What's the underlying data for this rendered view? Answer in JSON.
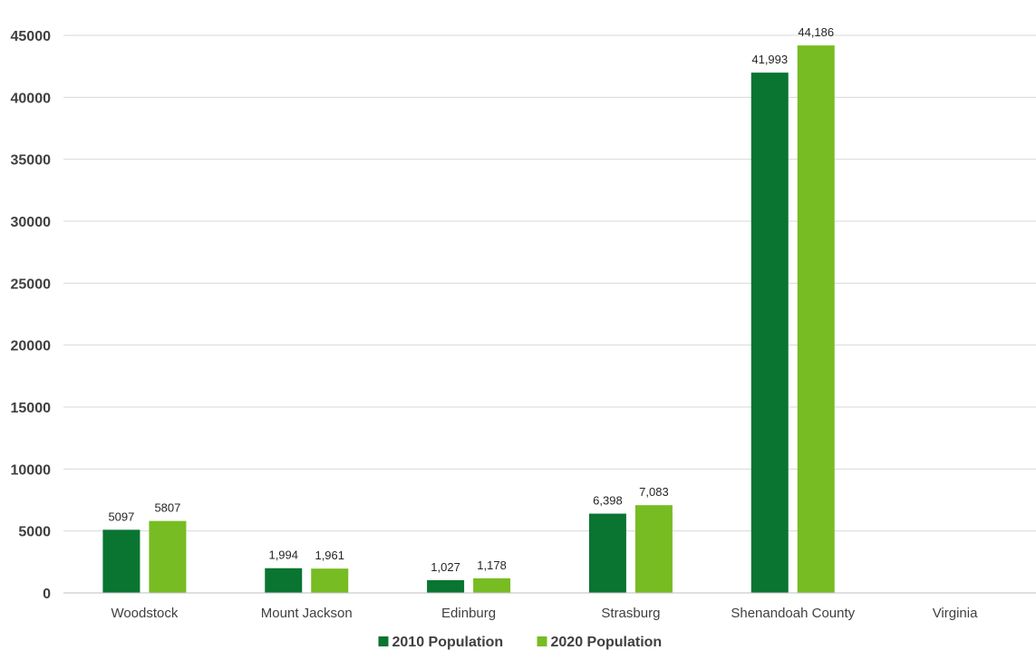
{
  "chart_data": {
    "type": "bar",
    "categories": [
      "Woodstock",
      "Mount Jackson",
      "Edinburg",
      "Strasburg",
      "Shenandoah County",
      "Virginia"
    ],
    "series": [
      {
        "name": "2010 Population",
        "color": "#0a7431",
        "values": [
          5097,
          1994,
          1027,
          6398,
          41993,
          null
        ],
        "labels": [
          "5097",
          "1,994",
          "1,027",
          "6,398",
          "41,993",
          ""
        ]
      },
      {
        "name": "2020 Population",
        "color": "#77bc22",
        "values": [
          5807,
          1961,
          1178,
          7083,
          44186,
          null
        ],
        "labels": [
          "5807",
          "1,961",
          "1,178",
          "7,083",
          "44,186",
          ""
        ]
      }
    ],
    "yticks": [
      "0",
      "5000",
      "10000",
      "15000",
      "20000",
      "25000",
      "30000",
      "35000",
      "40000",
      "45000"
    ],
    "ylim": [
      0,
      45000
    ],
    "grid": true,
    "legend": "bottom-center",
    "title": "",
    "xlabel": "",
    "ylabel": ""
  }
}
